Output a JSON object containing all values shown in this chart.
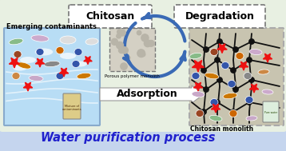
{
  "bg_outer": "#dce9d8",
  "bg_main": "#e8f0e2",
  "bg_bottom": "#c5d5ee",
  "title_text": "Water purification process",
  "title_color": "#2020cc",
  "title_fontsize": 10.5,
  "chitosan_label": "Chitosan",
  "degradation_label": "Degradation",
  "emerging_label": "Emerging contaminants",
  "porous_label": "Porous polymer monolith",
  "adsorption_label": "Adsorption",
  "monolith_label": "Chitosan monolith",
  "box_dash_color": "#777777",
  "arrow_color": "#3a6ab5",
  "left_bg": "#b8ddf5",
  "right_bg": "#c8c4b4",
  "star_color": "#ee1111",
  "pill_colors_left": [
    "#c8a8c8",
    "#bb6600",
    "#888888",
    "#3355aa",
    "#3355aa",
    "#cc7700",
    "#cc7700",
    "#c8a8c8",
    "#3355aa",
    "#888888",
    "#aa6600",
    "#c0c0c0",
    "#3355aa",
    "#c8a8c8"
  ],
  "pill_colors_right": [
    "#c8a8c8",
    "#bb6600",
    "#888888",
    "#3355aa",
    "#3355aa",
    "#cc7700",
    "#cc7700",
    "#c8a8c8",
    "#3355aa",
    "#888888",
    "#aa6600",
    "#c0c0c0",
    "#3355aa"
  ]
}
